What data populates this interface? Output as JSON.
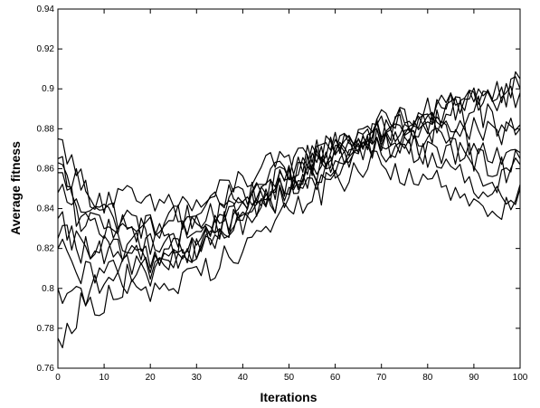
{
  "chart_data": {
    "type": "line",
    "title": "",
    "xlabel": "Iterations",
    "ylabel": "Average fitness",
    "xlim": [
      0,
      100
    ],
    "ylim": [
      0.76,
      0.94
    ],
    "xticks": [
      "0",
      "10",
      "20",
      "30",
      "40",
      "50",
      "60",
      "70",
      "80",
      "90",
      "100"
    ],
    "yticks": [
      "0.76",
      "0.78",
      "0.8",
      "0.82",
      "0.84",
      "0.86",
      "0.88",
      "0.9",
      "0.92",
      "0.94"
    ],
    "grid": false,
    "legend": "none",
    "line_color": "#000000",
    "x": [
      0,
      5,
      10,
      15,
      20,
      25,
      30,
      35,
      40,
      45,
      50,
      55,
      60,
      65,
      70,
      75,
      80,
      85,
      90,
      95,
      100
    ],
    "series": [
      {
        "values": [
          0.875,
          0.855,
          0.84,
          0.835,
          0.83,
          0.835,
          0.83,
          0.835,
          0.845,
          0.85,
          0.855,
          0.86,
          0.87,
          0.875,
          0.88,
          0.88,
          0.885,
          0.89,
          0.895,
          0.9,
          0.905
        ]
      },
      {
        "values": [
          0.865,
          0.85,
          0.845,
          0.845,
          0.84,
          0.845,
          0.84,
          0.848,
          0.855,
          0.86,
          0.862,
          0.868,
          0.872,
          0.878,
          0.882,
          0.885,
          0.888,
          0.893,
          0.897,
          0.895,
          0.9
        ]
      },
      {
        "values": [
          0.863,
          0.835,
          0.828,
          0.825,
          0.82,
          0.825,
          0.83,
          0.838,
          0.845,
          0.852,
          0.86,
          0.866,
          0.874,
          0.876,
          0.882,
          0.884,
          0.887,
          0.892,
          0.895,
          0.893,
          0.898
        ]
      },
      {
        "values": [
          0.858,
          0.832,
          0.83,
          0.835,
          0.828,
          0.825,
          0.828,
          0.835,
          0.842,
          0.848,
          0.855,
          0.864,
          0.87,
          0.875,
          0.88,
          0.885,
          0.878,
          0.888,
          0.89,
          0.884,
          0.88
        ]
      },
      {
        "values": [
          0.848,
          0.84,
          0.838,
          0.832,
          0.825,
          0.835,
          0.838,
          0.842,
          0.848,
          0.85,
          0.856,
          0.862,
          0.868,
          0.872,
          0.876,
          0.872,
          0.88,
          0.883,
          0.878,
          0.875,
          0.882
        ]
      },
      {
        "values": [
          0.835,
          0.82,
          0.815,
          0.822,
          0.818,
          0.82,
          0.825,
          0.832,
          0.838,
          0.845,
          0.852,
          0.858,
          0.864,
          0.87,
          0.876,
          0.88,
          0.882,
          0.88,
          0.872,
          0.87,
          0.868
        ]
      },
      {
        "values": [
          0.825,
          0.822,
          0.82,
          0.815,
          0.812,
          0.815,
          0.82,
          0.828,
          0.836,
          0.842,
          0.85,
          0.856,
          0.862,
          0.868,
          0.87,
          0.872,
          0.875,
          0.87,
          0.865,
          0.86,
          0.862
        ]
      },
      {
        "values": [
          0.82,
          0.805,
          0.808,
          0.812,
          0.815,
          0.818,
          0.822,
          0.83,
          0.838,
          0.846,
          0.854,
          0.858,
          0.866,
          0.872,
          0.878,
          0.874,
          0.868,
          0.87,
          0.858,
          0.855,
          0.865
        ]
      },
      {
        "values": [
          0.775,
          0.79,
          0.795,
          0.805,
          0.808,
          0.812,
          0.818,
          0.826,
          0.834,
          0.842,
          0.85,
          0.856,
          0.862,
          0.866,
          0.87,
          0.872,
          0.866,
          0.862,
          0.852,
          0.846,
          0.85
        ]
      },
      {
        "values": [
          0.8,
          0.798,
          0.8,
          0.804,
          0.8,
          0.802,
          0.806,
          0.814,
          0.822,
          0.83,
          0.838,
          0.846,
          0.854,
          0.86,
          0.862,
          0.858,
          0.855,
          0.848,
          0.84,
          0.835,
          0.852
        ]
      }
    ]
  }
}
